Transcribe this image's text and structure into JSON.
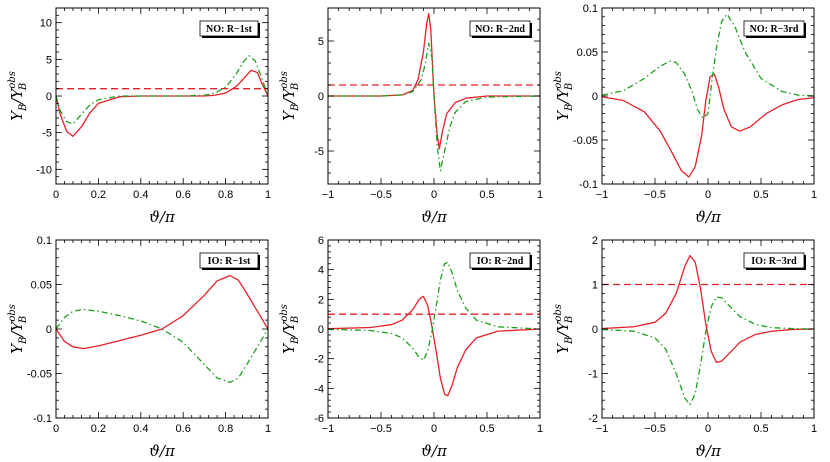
{
  "chart_data": [
    {
      "type": "line",
      "tag": "NO: R−1st",
      "xlabel": "ϑ/π",
      "ylabel_main": "Y",
      "ylabel_sub": "B",
      "ylabel_den": "/Y",
      "ylabel_den_sub": "B",
      "ylabel_den_sup": "obs",
      "xlim": [
        0,
        1
      ],
      "ylim": [
        -12,
        12
      ],
      "xticks": [
        0,
        0.2,
        0.4,
        0.6,
        0.8,
        1
      ],
      "xtick_labels": [
        "0",
        "0.2",
        "0.4",
        "0.6",
        "0.8",
        "1"
      ],
      "yticks": [
        -10,
        -5,
        0,
        5,
        10
      ],
      "ytick_labels": [
        "-10",
        "-5",
        "0",
        "5",
        "10"
      ],
      "hline": 1,
      "series": [
        {
          "style": "solid",
          "color": "#e8202a",
          "x": [
            0,
            0.02,
            0.05,
            0.08,
            0.12,
            0.16,
            0.2,
            0.3,
            0.4,
            0.5,
            0.6,
            0.7,
            0.75,
            0.8,
            0.85,
            0.88,
            0.92,
            0.95,
            0.97,
            1.0
          ],
          "y": [
            0,
            -2.5,
            -4.8,
            -5.5,
            -4.2,
            -2.3,
            -1.0,
            -0.1,
            0,
            0,
            0,
            0,
            0.1,
            0.4,
            1.3,
            2.2,
            3.5,
            3.2,
            1.8,
            0
          ]
        },
        {
          "style": "dashdot",
          "color": "#1ea01e",
          "x": [
            0,
            0.02,
            0.05,
            0.08,
            0.12,
            0.16,
            0.2,
            0.3,
            0.4,
            0.5,
            0.6,
            0.7,
            0.75,
            0.8,
            0.85,
            0.88,
            0.91,
            0.94,
            0.97,
            1.0
          ],
          "y": [
            0,
            -2.0,
            -3.5,
            -3.8,
            -2.5,
            -1.2,
            -0.5,
            0,
            0,
            0,
            0,
            0.1,
            0.4,
            1.2,
            3.0,
            4.5,
            5.5,
            4.8,
            2.5,
            0
          ]
        }
      ]
    },
    {
      "type": "line",
      "tag": "NO: R−2nd",
      "xlabel": "ϑ/π",
      "ylabel_main": "Y",
      "ylabel_sub": "B",
      "ylabel_den": "/Y",
      "ylabel_den_sub": "B",
      "ylabel_den_sup": "obs",
      "xlim": [
        -1,
        1
      ],
      "ylim": [
        -8,
        8
      ],
      "xticks": [
        -1,
        -0.5,
        0,
        0.5,
        1
      ],
      "xtick_labels": [
        "−1",
        "−0.5",
        "0",
        "0.5",
        "1"
      ],
      "yticks": [
        -5,
        0,
        5
      ],
      "ytick_labels": [
        "-5",
        "0",
        "5"
      ],
      "hline": 1,
      "series": [
        {
          "style": "solid",
          "color": "#e8202a",
          "x": [
            -1,
            -0.5,
            -0.3,
            -0.2,
            -0.15,
            -0.1,
            -0.07,
            -0.05,
            -0.03,
            0,
            0.03,
            0.05,
            0.08,
            0.12,
            0.2,
            0.3,
            0.5,
            1
          ],
          "y": [
            0,
            0,
            0.1,
            0.5,
            1.5,
            4.0,
            6.5,
            7.5,
            6.0,
            0,
            -3.5,
            -4.8,
            -3.2,
            -1.6,
            -0.6,
            -0.2,
            0,
            0
          ]
        },
        {
          "style": "dashdot",
          "color": "#1ea01e",
          "x": [
            -1,
            -0.5,
            -0.3,
            -0.2,
            -0.12,
            -0.08,
            -0.05,
            -0.02,
            0,
            0.03,
            0.06,
            0.1,
            0.15,
            0.2,
            0.3,
            0.5,
            1
          ],
          "y": [
            0,
            0,
            0.1,
            0.4,
            1.5,
            3.0,
            4.8,
            3.5,
            0,
            -4.5,
            -6.8,
            -5.0,
            -2.8,
            -1.5,
            -0.5,
            -0.1,
            0
          ]
        }
      ]
    },
    {
      "type": "line",
      "tag": "NO: R−3rd",
      "xlabel": "ϑ/π",
      "ylabel_main": "Y",
      "ylabel_sub": "B",
      "ylabel_den": "/Y",
      "ylabel_den_sub": "B",
      "ylabel_den_sup": "obs",
      "xlim": [
        -1,
        1
      ],
      "ylim": [
        -0.1,
        0.1
      ],
      "xticks": [
        -1,
        -0.5,
        0,
        0.5,
        1
      ],
      "xtick_labels": [
        "−1",
        "−0.5",
        "0",
        "0.5",
        "1"
      ],
      "yticks": [
        -0.1,
        -0.05,
        0,
        0.05,
        0.1
      ],
      "ytick_labels": [
        "-0.1",
        "-0.05",
        "0",
        "0.05",
        "0.1"
      ],
      "hline": null,
      "series": [
        {
          "style": "solid",
          "color": "#e8202a",
          "x": [
            -1,
            -0.8,
            -0.6,
            -0.45,
            -0.35,
            -0.25,
            -0.18,
            -0.12,
            -0.06,
            -0.02,
            0.02,
            0.06,
            0.1,
            0.15,
            0.22,
            0.3,
            0.4,
            0.55,
            0.7,
            0.85,
            1
          ],
          "y": [
            -0.001,
            -0.005,
            -0.018,
            -0.04,
            -0.062,
            -0.085,
            -0.092,
            -0.08,
            -0.045,
            -0.005,
            0.022,
            0.025,
            0.01,
            -0.015,
            -0.035,
            -0.04,
            -0.035,
            -0.02,
            -0.01,
            -0.004,
            -0.002
          ]
        },
        {
          "style": "dashdot",
          "color": "#1ea01e",
          "x": [
            -1,
            -0.8,
            -0.6,
            -0.45,
            -0.35,
            -0.3,
            -0.22,
            -0.15,
            -0.1,
            -0.05,
            0,
            0.04,
            0.08,
            0.13,
            0.18,
            0.25,
            0.35,
            0.5,
            0.7,
            0.85,
            1
          ],
          "y": [
            0.001,
            0.006,
            0.02,
            0.034,
            0.04,
            0.038,
            0.025,
            0.005,
            -0.015,
            -0.025,
            -0.02,
            0.02,
            0.055,
            0.085,
            0.093,
            0.08,
            0.05,
            0.02,
            0.005,
            0.001,
            0
          ]
        }
      ]
    },
    {
      "type": "line",
      "tag": "IO: R−1st",
      "xlabel": "ϑ/π",
      "ylabel_main": "Y",
      "ylabel_sub": "B",
      "ylabel_den": "/Y",
      "ylabel_den_sub": "B",
      "ylabel_den_sup": "obs",
      "xlim": [
        0,
        1
      ],
      "ylim": [
        -0.1,
        0.1
      ],
      "xticks": [
        0,
        0.2,
        0.4,
        0.6,
        0.8,
        1
      ],
      "xtick_labels": [
        "0",
        "0.2",
        "0.4",
        "0.6",
        "0.8",
        "1"
      ],
      "yticks": [
        -0.1,
        -0.05,
        0,
        0.05,
        0.1
      ],
      "ytick_labels": [
        "-0.1",
        "-0.05",
        "0",
        "0.05",
        "0.1"
      ],
      "hline": null,
      "series": [
        {
          "style": "solid",
          "color": "#e8202a",
          "x": [
            0,
            0.04,
            0.08,
            0.13,
            0.2,
            0.3,
            0.4,
            0.5,
            0.6,
            0.7,
            0.76,
            0.82,
            0.86,
            0.9,
            0.95,
            1
          ],
          "y": [
            0,
            -0.014,
            -0.02,
            -0.022,
            -0.019,
            -0.013,
            -0.007,
            0,
            0.015,
            0.038,
            0.054,
            0.06,
            0.055,
            0.04,
            0.02,
            0
          ]
        },
        {
          "style": "dashdot",
          "color": "#1ea01e",
          "x": [
            0,
            0.04,
            0.08,
            0.13,
            0.2,
            0.3,
            0.4,
            0.5,
            0.6,
            0.7,
            0.76,
            0.82,
            0.86,
            0.9,
            0.95,
            1
          ],
          "y": [
            0,
            0.013,
            0.02,
            0.022,
            0.02,
            0.015,
            0.009,
            0,
            -0.015,
            -0.04,
            -0.055,
            -0.06,
            -0.055,
            -0.04,
            -0.02,
            0
          ]
        }
      ]
    },
    {
      "type": "line",
      "tag": "IO: R−2nd",
      "xlabel": "ϑ/π",
      "ylabel_main": "Y",
      "ylabel_sub": "B",
      "ylabel_den": "/Y",
      "ylabel_den_sub": "B",
      "ylabel_den_sup": "obs",
      "xlim": [
        -1,
        1
      ],
      "ylim": [
        -6,
        6
      ],
      "xticks": [
        -1,
        -0.5,
        0,
        0.5,
        1
      ],
      "xtick_labels": [
        "−1",
        "−0.5",
        "0",
        "0.5",
        "1"
      ],
      "yticks": [
        -6,
        -4,
        -2,
        0,
        2,
        4,
        6
      ],
      "ytick_labels": [
        "-6",
        "-4",
        "-2",
        "0",
        "2",
        "4",
        "6"
      ],
      "hline": 1,
      "series": [
        {
          "style": "solid",
          "color": "#e8202a",
          "x": [
            -1,
            -0.6,
            -0.4,
            -0.3,
            -0.2,
            -0.14,
            -0.1,
            -0.06,
            -0.02,
            0.02,
            0.06,
            0.1,
            0.13,
            0.17,
            0.22,
            0.3,
            0.4,
            0.6,
            1
          ],
          "y": [
            0.02,
            0.1,
            0.3,
            0.6,
            1.3,
            2.0,
            2.2,
            1.6,
            0.2,
            -1.5,
            -3.3,
            -4.4,
            -4.5,
            -3.8,
            -2.6,
            -1.4,
            -0.6,
            -0.15,
            0
          ]
        },
        {
          "style": "dashdot",
          "color": "#1ea01e",
          "x": [
            -1,
            -0.6,
            -0.4,
            -0.3,
            -0.2,
            -0.14,
            -0.1,
            -0.06,
            -0.02,
            0.02,
            0.06,
            0.1,
            0.13,
            0.17,
            0.22,
            0.3,
            0.4,
            0.6,
            1
          ],
          "y": [
            -0.02,
            -0.1,
            -0.3,
            -0.6,
            -1.3,
            -1.9,
            -2.1,
            -1.5,
            -0.2,
            1.5,
            3.3,
            4.4,
            4.5,
            3.8,
            2.6,
            1.4,
            0.6,
            0.15,
            0
          ]
        }
      ]
    },
    {
      "type": "line",
      "tag": "IO: R−3rd",
      "xlabel": "ϑ/π",
      "ylabel_main": "Y",
      "ylabel_sub": "B",
      "ylabel_den": "/Y",
      "ylabel_den_sub": "B",
      "ylabel_den_sup": "obs",
      "xlim": [
        -1,
        1
      ],
      "ylim": [
        -2,
        2
      ],
      "xticks": [
        -1,
        -0.5,
        0,
        0.5,
        1
      ],
      "xtick_labels": [
        "−1",
        "−0.5",
        "0",
        "0.5",
        "1"
      ],
      "yticks": [
        -2,
        -1,
        0,
        1,
        2
      ],
      "ytick_labels": [
        "-2",
        "-1",
        "0",
        "1",
        "2"
      ],
      "hline": 1,
      "series": [
        {
          "style": "solid",
          "color": "#e8202a",
          "x": [
            -1,
            -0.7,
            -0.5,
            -0.4,
            -0.3,
            -0.22,
            -0.17,
            -0.12,
            -0.07,
            -0.02,
            0.03,
            0.08,
            0.13,
            0.2,
            0.3,
            0.45,
            0.6,
            0.8,
            1
          ],
          "y": [
            0.01,
            0.05,
            0.15,
            0.35,
            0.8,
            1.4,
            1.65,
            1.5,
            0.9,
            0.1,
            -0.5,
            -0.75,
            -0.72,
            -0.55,
            -0.3,
            -0.12,
            -0.05,
            -0.01,
            0
          ]
        },
        {
          "style": "dashdot",
          "color": "#1ea01e",
          "x": [
            -1,
            -0.7,
            -0.5,
            -0.4,
            -0.3,
            -0.22,
            -0.17,
            -0.12,
            -0.07,
            -0.02,
            0.03,
            0.08,
            0.13,
            0.2,
            0.3,
            0.45,
            0.6,
            0.8,
            1
          ],
          "y": [
            -0.01,
            -0.05,
            -0.2,
            -0.45,
            -1.0,
            -1.55,
            -1.7,
            -1.45,
            -0.8,
            -0.05,
            0.5,
            0.72,
            0.7,
            0.52,
            0.28,
            0.1,
            0.03,
            0.01,
            0
          ]
        }
      ]
    }
  ]
}
